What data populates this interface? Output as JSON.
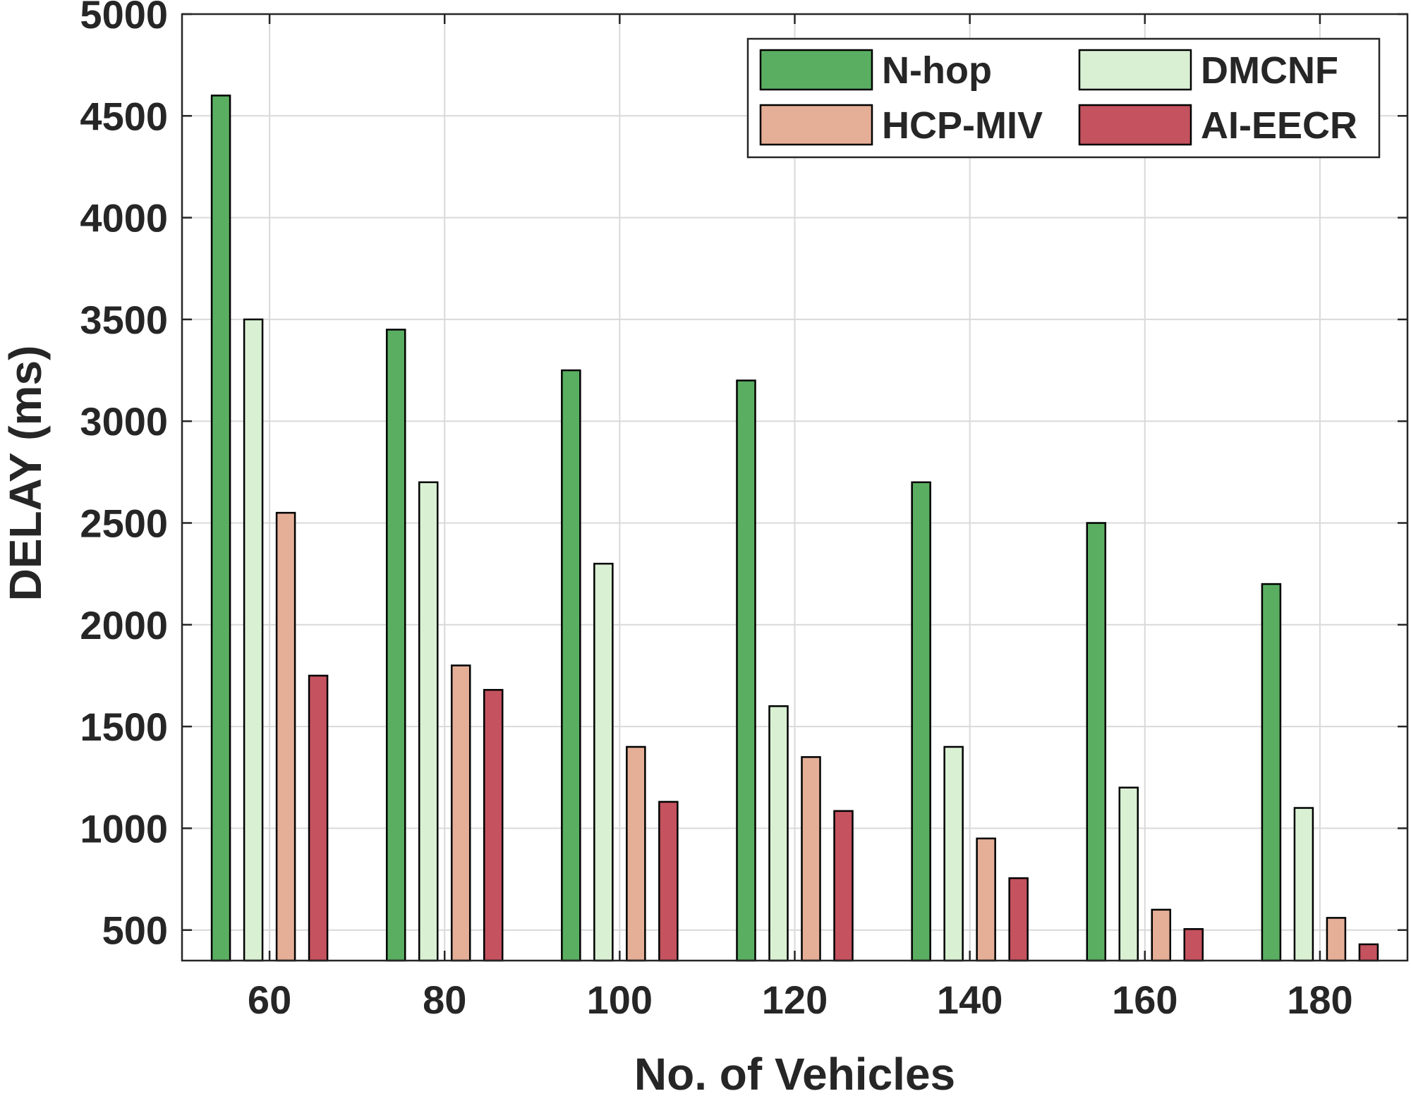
{
  "chart_data": {
    "type": "bar",
    "title": "",
    "xlabel": "No. of Vehicles",
    "ylabel": "DELAY (ms)",
    "categories": [
      "60",
      "80",
      "100",
      "120",
      "140",
      "160",
      "180"
    ],
    "ylim": [
      350,
      5000
    ],
    "yticks": [
      500,
      1000,
      1500,
      2000,
      2500,
      3000,
      3500,
      4000,
      4500,
      5000
    ],
    "grid": true,
    "legend": {
      "placement": "top-right",
      "columns": 2
    },
    "series": [
      {
        "name": "N-hop",
        "color": "#5aae61",
        "values": [
          4600,
          3450,
          3250,
          3200,
          2700,
          2500,
          2200
        ]
      },
      {
        "name": "DMCNF",
        "color": "#d9f0d3",
        "values": [
          3500,
          2700,
          2300,
          1600,
          1400,
          1200,
          1100
        ]
      },
      {
        "name": "HCP-MIV",
        "color": "#e5ae96",
        "values": [
          2550,
          1800,
          1400,
          1350,
          950,
          600,
          560
        ]
      },
      {
        "name": "AI-EECR",
        "color": "#c5525f",
        "values": [
          1750,
          1680,
          1130,
          1085,
          755,
          505,
          430
        ]
      }
    ]
  }
}
